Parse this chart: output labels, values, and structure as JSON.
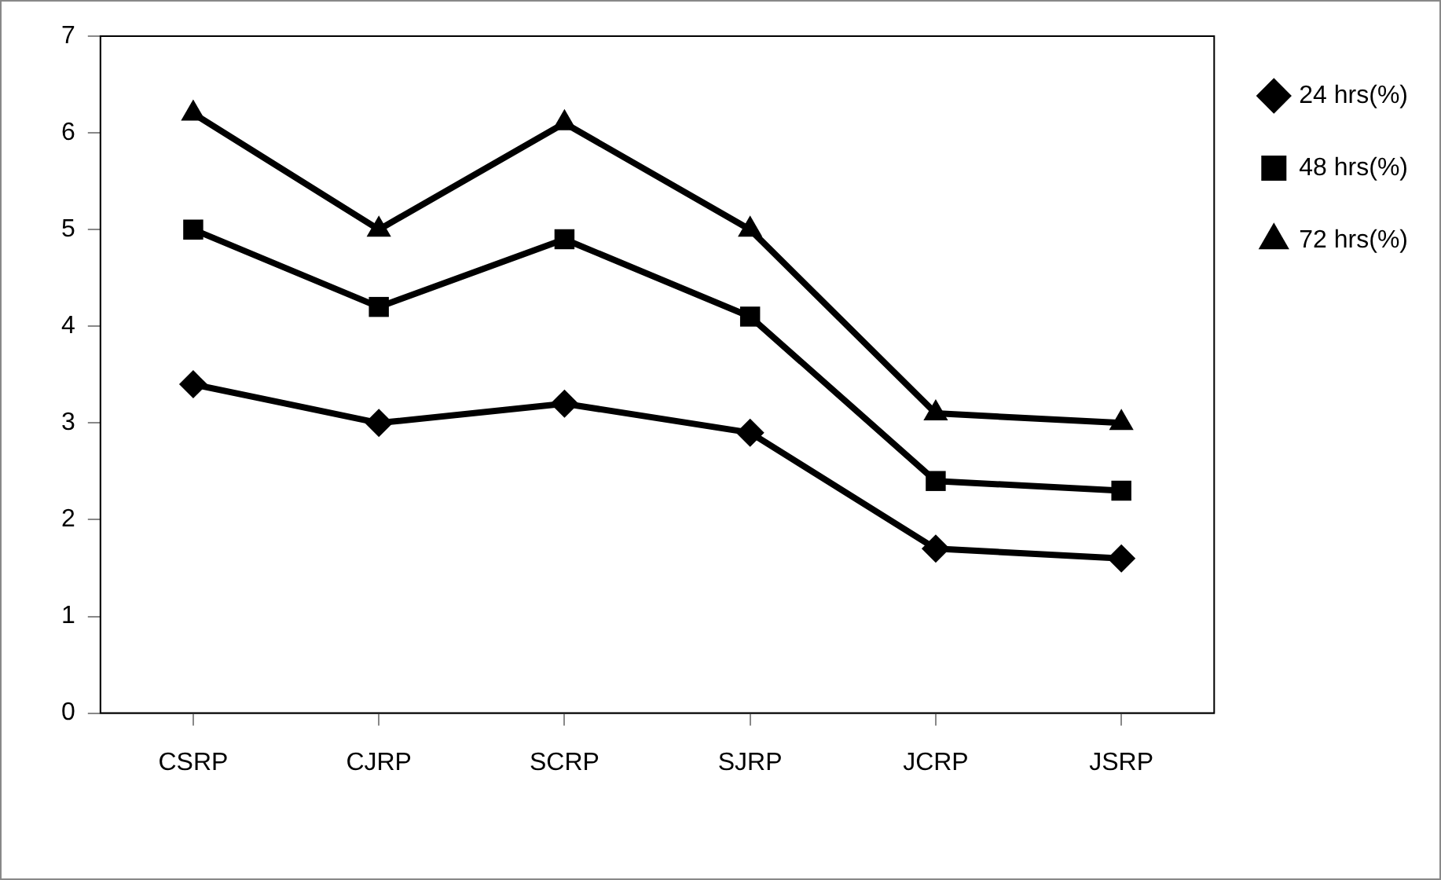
{
  "chart_data": {
    "type": "line",
    "categories": [
      "CSRP",
      "CJRP",
      "SCRP",
      "SJRP",
      "JCRP",
      "JSRP"
    ],
    "series": [
      {
        "name": "24 hrs(%)",
        "color": "#000000",
        "marker": "diamond",
        "values": [
          3.4,
          3.0,
          3.2,
          2.9,
          1.7,
          1.6
        ]
      },
      {
        "name": "48 hrs(%)",
        "color": "#000000",
        "marker": "square",
        "values": [
          5.0,
          4.2,
          4.9,
          4.1,
          2.4,
          2.3
        ]
      },
      {
        "name": "72 hrs(%)",
        "color": "#000000",
        "marker": "triangle",
        "values": [
          6.2,
          5.0,
          6.1,
          5.0,
          3.1,
          3.0
        ]
      }
    ],
    "ylim": [
      0,
      7
    ],
    "yticks": [
      0,
      1,
      2,
      3,
      4,
      5,
      6,
      7
    ],
    "grid": false,
    "legend": "top right",
    "line_style": "solid"
  }
}
